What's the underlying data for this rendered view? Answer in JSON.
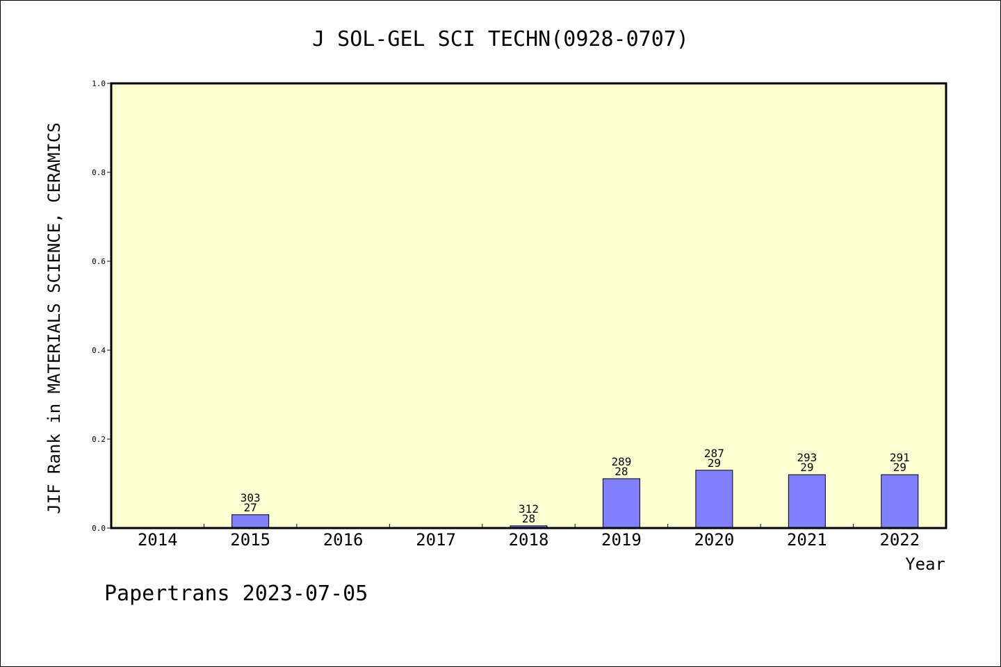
{
  "chart_data": {
    "type": "bar",
    "title": "J SOL-GEL SCI TECHN(0928-0707)",
    "ylabel": "JIF Rank in MATERIALS SCIENCE, CERAMICS",
    "xlabel": "Year",
    "categories": [
      "2014",
      "2015",
      "2016",
      "2017",
      "2018",
      "2019",
      "2020",
      "2021",
      "2022"
    ],
    "values": [
      null,
      0.03,
      null,
      null,
      0.005,
      0.111,
      0.13,
      0.12,
      0.12
    ],
    "bar_labels": [
      null,
      {
        "top": "303",
        "bottom": "27"
      },
      null,
      null,
      {
        "top": "312",
        "bottom": "28"
      },
      {
        "top": "289",
        "bottom": "28"
      },
      {
        "top": "287",
        "bottom": "29"
      },
      {
        "top": "293",
        "bottom": "29"
      },
      {
        "top": "291",
        "bottom": "29"
      }
    ],
    "ylim": [
      0,
      1.0
    ],
    "yticks": [
      "0.0",
      "0.2",
      "0.4",
      "0.6",
      "0.8",
      "1.0"
    ],
    "grid": false,
    "colors": {
      "plot_background": "#ffffd4",
      "bar_fill": "#8080ff",
      "bar_stroke": "#000000"
    }
  },
  "footer": "Papertrans 2023-07-05"
}
